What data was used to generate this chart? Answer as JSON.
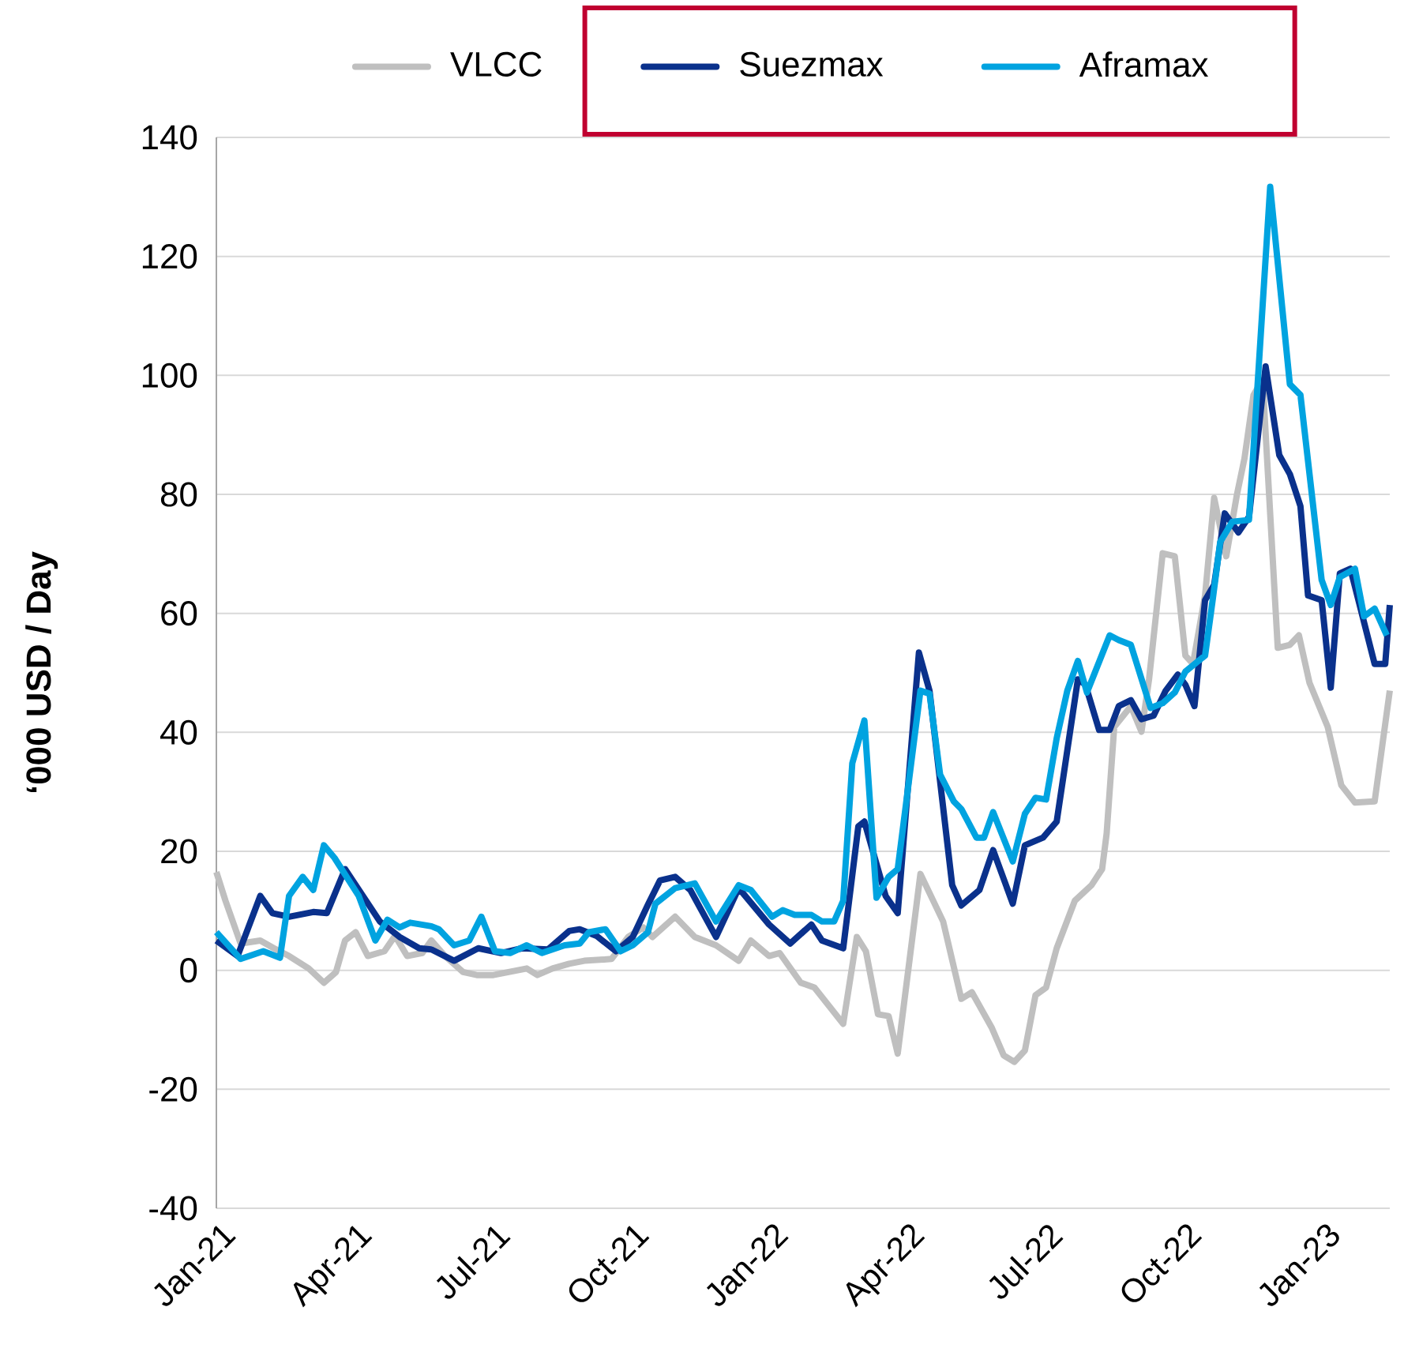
{
  "chart_data": {
    "type": "line",
    "ylabel": "‘000 USD / Day",
    "legend": "top",
    "grid": "y",
    "xlim": [
      "2021-01-01",
      "2023-02-15"
    ],
    "xticks": [
      {
        "value": "2021-01-01",
        "label": "Jan-21"
      },
      {
        "value": "2021-04-01",
        "label": "Apr-21"
      },
      {
        "value": "2021-07-01",
        "label": "Jul-21"
      },
      {
        "value": "2021-10-01",
        "label": "Oct-21"
      },
      {
        "value": "2022-01-01",
        "label": "Jan-22"
      },
      {
        "value": "2022-04-01",
        "label": "Apr-22"
      },
      {
        "value": "2022-07-01",
        "label": "Jul-22"
      },
      {
        "value": "2022-10-01",
        "label": "Oct-22"
      },
      {
        "value": "2023-01-01",
        "label": "Jan-23"
      }
    ],
    "ylim": [
      -40,
      140
    ],
    "yticks": [
      -40,
      -20,
      0,
      20,
      40,
      60,
      80,
      100,
      120,
      140
    ],
    "series": [
      {
        "name": "VLCC",
        "color": "#bfbfbf",
        "x": [
          "2021-01-01",
          "2021-01-07",
          "2021-01-17",
          "2021-01-30",
          "2021-02-08",
          "2021-02-18",
          "2021-03-03",
          "2021-03-13",
          "2021-03-21",
          "2021-03-27",
          "2021-04-03",
          "2021-04-11",
          "2021-04-22",
          "2021-04-29",
          "2021-05-07",
          "2021-05-17",
          "2021-05-23",
          "2021-06-01",
          "2021-06-13",
          "2021-06-22",
          "2021-07-03",
          "2021-07-13",
          "2021-07-25",
          "2021-08-01",
          "2021-08-11",
          "2021-08-22",
          "2021-09-01",
          "2021-09-19",
          "2021-09-30",
          "2021-10-10",
          "2021-10-16",
          "2021-10-31",
          "2021-11-13",
          "2021-11-27",
          "2021-12-12",
          "2021-12-20",
          "2022-01-01",
          "2022-01-08",
          "2022-01-22",
          "2022-01-31",
          "2022-02-19",
          "2022-02-28",
          "2022-03-06",
          "2022-03-14",
          "2022-03-21",
          "2022-03-27",
          "2022-04-11",
          "2022-04-26",
          "2022-05-08",
          "2022-05-15",
          "2022-05-28",
          "2022-06-05",
          "2022-06-12",
          "2022-06-19",
          "2022-06-26",
          "2022-07-03",
          "2022-07-10",
          "2022-07-22",
          "2022-08-02",
          "2022-08-09",
          "2022-08-12",
          "2022-08-17",
          "2022-08-28",
          "2022-09-04",
          "2022-09-09",
          "2022-09-18",
          "2022-09-26",
          "2022-10-03",
          "2022-10-08",
          "2022-10-16",
          "2022-10-22",
          "2022-10-30",
          "2022-11-06",
          "2022-11-11",
          "2022-11-17",
          "2022-11-23",
          "2022-12-03",
          "2022-12-11",
          "2022-12-17",
          "2022-12-24",
          "2023-01-05",
          "2023-01-14",
          "2023-01-23",
          "2023-02-05",
          "2023-02-15"
        ],
        "values": [
          16.5,
          11.7,
          4.5,
          5,
          3.7,
          2.4,
          0.3,
          -2.1,
          -0.3,
          5,
          6.4,
          2.4,
          3.2,
          5.8,
          2.4,
          2.9,
          5,
          2.4,
          -0.3,
          -0.8,
          -0.8,
          -0.3,
          0.3,
          -0.8,
          0.3,
          1.1,
          1.6,
          1.9,
          5.6,
          7.2,
          5.6,
          9,
          5.6,
          4.2,
          1.6,
          5,
          2.4,
          2.9,
          -2.1,
          -2.9,
          -9,
          5.6,
          3.2,
          -7.4,
          -7.7,
          -14,
          16.2,
          8.2,
          -4.8,
          -3.7,
          -9.6,
          -14.3,
          -15.4,
          -13.5,
          -4.2,
          -2.9,
          3.7,
          11.7,
          14.3,
          17,
          23,
          40.9,
          44.4,
          40.1,
          48.9,
          70.1,
          69.6,
          52.9,
          51.5,
          63,
          79.4,
          69.6,
          79.9,
          86,
          96.7,
          99.3,
          54.2,
          54.7,
          56.3,
          48.3,
          40.9,
          31.1,
          28.2,
          28.4,
          47
        ]
      },
      {
        "name": "Suezmax",
        "color": "#0a318c",
        "x": [
          "2021-01-01",
          "2021-01-15",
          "2021-01-30",
          "2021-02-07",
          "2021-02-18",
          "2021-03-06",
          "2021-03-15",
          "2021-03-27",
          "2021-04-19",
          "2021-05-02",
          "2021-05-15",
          "2021-05-23",
          "2021-06-07",
          "2021-06-23",
          "2021-07-08",
          "2021-07-22",
          "2021-08-08",
          "2021-08-22",
          "2021-08-29",
          "2021-09-09",
          "2021-09-22",
          "2021-10-03",
          "2021-10-13",
          "2021-10-21",
          "2021-10-31",
          "2021-11-10",
          "2021-11-27",
          "2021-12-12",
          "2022-01-01",
          "2022-01-15",
          "2022-01-29",
          "2022-02-05",
          "2022-02-19",
          "2022-03-01",
          "2022-03-05",
          "2022-03-19",
          "2022-03-27",
          "2022-04-10",
          "2022-04-17",
          "2022-05-02",
          "2022-05-08",
          "2022-05-20",
          "2022-05-29",
          "2022-06-11",
          "2022-06-19",
          "2022-07-01",
          "2022-07-10",
          "2022-07-24",
          "2022-07-29",
          "2022-08-07",
          "2022-08-14",
          "2022-08-20",
          "2022-08-28",
          "2022-09-04",
          "2022-09-12",
          "2022-09-20",
          "2022-09-28",
          "2022-10-03",
          "2022-10-09",
          "2022-10-16",
          "2022-10-22",
          "2022-10-29",
          "2022-11-07",
          "2022-11-14",
          "2022-11-25",
          "2022-12-04",
          "2022-12-11",
          "2022-12-18",
          "2022-12-23",
          "2023-01-01",
          "2023-01-07",
          "2023-01-13",
          "2023-01-20",
          "2023-02-05",
          "2023-02-12",
          "2023-02-15"
        ],
        "values": [
          5,
          2.4,
          12.5,
          9.6,
          9,
          9.8,
          9.6,
          17,
          8.2,
          5.6,
          3.7,
          3.5,
          1.6,
          3.7,
          2.9,
          3.7,
          3.5,
          6.6,
          6.9,
          5.8,
          3.2,
          5.6,
          11,
          15.1,
          15.7,
          13.5,
          5.6,
          13.8,
          7.7,
          4.5,
          7.7,
          5,
          3.7,
          24.2,
          25,
          12.5,
          9.6,
          53.4,
          47,
          14.3,
          10.9,
          13.5,
          20.2,
          11.2,
          21,
          22.3,
          25,
          48.9,
          48,
          40.4,
          40.4,
          44.4,
          45.4,
          42.2,
          42.8,
          47,
          49.7,
          48,
          44.4,
          62.2,
          64.8,
          76.8,
          73.6,
          76.2,
          101.5,
          86.6,
          83.4,
          78,
          63,
          62.2,
          47.5,
          66.7,
          67.5,
          51.5,
          51.5,
          61.4
        ]
      },
      {
        "name": "Aframax",
        "color": "#00a3e0",
        "x": [
          "2021-01-01",
          "2021-01-17",
          "2021-02-01",
          "2021-02-12",
          "2021-02-18",
          "2021-02-27",
          "2021-03-06",
          "2021-03-13",
          "2021-03-20",
          "2021-04-05",
          "2021-04-16",
          "2021-04-24",
          "2021-05-02",
          "2021-05-09",
          "2021-05-23",
          "2021-05-28",
          "2021-06-07",
          "2021-06-17",
          "2021-06-25",
          "2021-07-04",
          "2021-07-14",
          "2021-07-25",
          "2021-08-04",
          "2021-08-19",
          "2021-08-29",
          "2021-09-04",
          "2021-09-15",
          "2021-09-25",
          "2021-10-03",
          "2021-10-13",
          "2021-10-18",
          "2021-10-31",
          "2021-11-13",
          "2021-11-27",
          "2021-12-12",
          "2021-12-20",
          "2022-01-03",
          "2022-01-10",
          "2022-01-18",
          "2022-01-29",
          "2022-02-05",
          "2022-02-13",
          "2022-02-19",
          "2022-02-25",
          "2022-03-05",
          "2022-03-13",
          "2022-03-21",
          "2022-03-27",
          "2022-04-11",
          "2022-04-17",
          "2022-04-24",
          "2022-05-03",
          "2022-05-08",
          "2022-05-18",
          "2022-05-23",
          "2022-05-29",
          "2022-06-11",
          "2022-06-19",
          "2022-06-26",
          "2022-07-03",
          "2022-07-10",
          "2022-07-17",
          "2022-07-24",
          "2022-07-30",
          "2022-08-14",
          "2022-08-20",
          "2022-08-28",
          "2022-09-10",
          "2022-09-18",
          "2022-09-26",
          "2022-10-03",
          "2022-10-16",
          "2022-10-21",
          "2022-10-26",
          "2022-11-03",
          "2022-11-14",
          "2022-11-28",
          "2022-12-11",
          "2022-12-18",
          "2023-01-01",
          "2023-01-07",
          "2023-01-13",
          "2023-01-23",
          "2023-01-29",
          "2023-02-05",
          "2023-02-13"
        ],
        "values": [
          6.4,
          1.9,
          3.2,
          2.1,
          12.5,
          15.7,
          13.5,
          21,
          18.9,
          12.5,
          5,
          8.5,
          7.2,
          8,
          7.4,
          6.9,
          4.2,
          5,
          9,
          3.2,
          2.9,
          4.2,
          2.9,
          4.2,
          4.5,
          6.4,
          6.9,
          3.2,
          4.2,
          6.4,
          11.2,
          13.8,
          14.6,
          8.2,
          14.3,
          13.5,
          9,
          10.1,
          9.3,
          9.3,
          8.2,
          8.2,
          11.7,
          34.8,
          42,
          12.2,
          15.7,
          17,
          47,
          46.5,
          32.9,
          28.4,
          27.1,
          22.3,
          22.3,
          26.6,
          18.3,
          26.3,
          29,
          28.7,
          39,
          47,
          52,
          46.7,
          56.3,
          55.5,
          54.7,
          44.1,
          44.9,
          46.7,
          50.2,
          52.9,
          62.2,
          72,
          75.4,
          75.7,
          131.7,
          98.5,
          96.7,
          65.6,
          61.4,
          66.1,
          67.5,
          59.5,
          60.8,
          56.3
        ]
      }
    ]
  }
}
